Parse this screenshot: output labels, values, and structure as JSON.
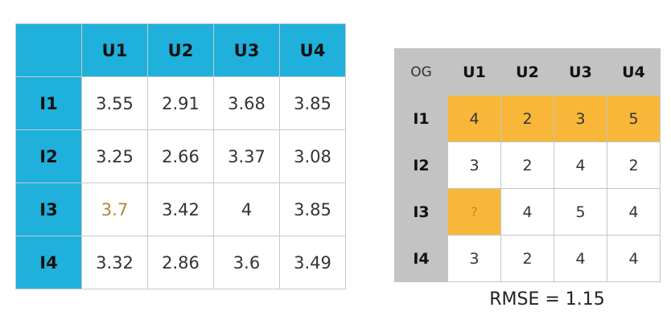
{
  "predicted_table": {
    "columns": [
      "U1",
      "U2",
      "U3",
      "U4"
    ],
    "rows": [
      {
        "label": "I1",
        "values": [
          "3.55",
          "2.91",
          "3.68",
          "3.85"
        ]
      },
      {
        "label": "I2",
        "values": [
          "3.25",
          "2.66",
          "3.37",
          "3.08"
        ]
      },
      {
        "label": "I3",
        "values": [
          "3.7",
          "3.42",
          "4",
          "3.85"
        ]
      },
      {
        "label": "I4",
        "values": [
          "3.32",
          "2.86",
          "3.6",
          "3.49"
        ]
      }
    ]
  },
  "original_table": {
    "corner": "OG",
    "columns": [
      "U1",
      "U2",
      "U3",
      "U4"
    ],
    "rows": [
      {
        "label": "I1",
        "values": [
          "4",
          "2",
          "3",
          "5"
        ]
      },
      {
        "label": "I2",
        "values": [
          "3",
          "2",
          "4",
          "2"
        ]
      },
      {
        "label": "I3",
        "values": [
          "?",
          "4",
          "5",
          "4"
        ]
      },
      {
        "label": "I4",
        "values": [
          "3",
          "2",
          "4",
          "4"
        ]
      }
    ]
  },
  "rmse_text": "RMSE = 1.15",
  "colors": {
    "predicted_header": "#1fb0dc",
    "original_header": "#c3c3c3",
    "highlight": "#f8b739"
  }
}
